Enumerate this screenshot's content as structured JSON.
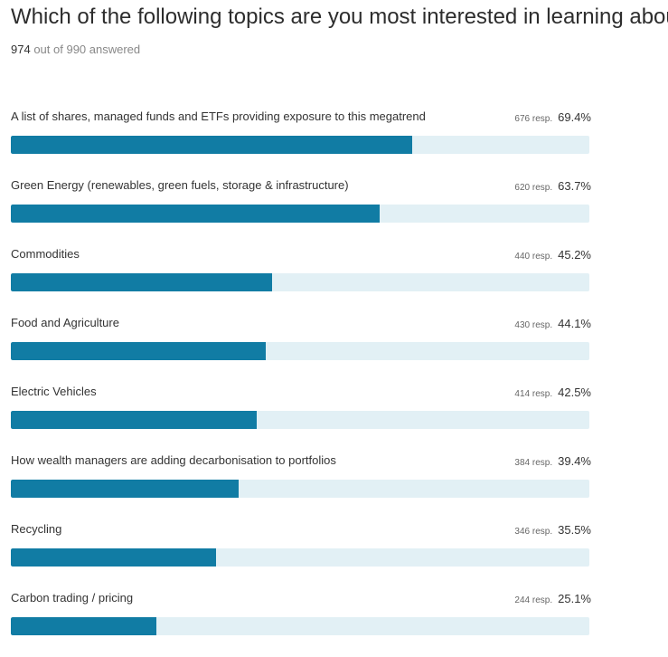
{
  "question": "Which of the following topics are you most interested in learning about?",
  "answered": {
    "count": "974",
    "text": "out of 990 answered"
  },
  "resp_suffix": "resp.",
  "colors": {
    "bar_fill": "#117ca4",
    "bar_track": "#e2f0f5"
  },
  "chart_data": {
    "type": "bar",
    "orientation": "horizontal",
    "categories": [
      "A list of shares, managed funds and ETFs providing exposure to this megatrend",
      "Green Energy (renewables, green fuels, storage & infrastructure)",
      "Commodities",
      "Food and Agriculture",
      "Electric Vehicles",
      "How wealth managers are adding decarbonisation to portfolios",
      "Recycling",
      "Carbon trading / pricing"
    ],
    "responses": [
      676,
      620,
      440,
      430,
      414,
      384,
      346,
      244
    ],
    "values": [
      69.4,
      63.7,
      45.2,
      44.1,
      42.5,
      39.4,
      35.5,
      25.1
    ],
    "value_labels": [
      "69.4%",
      "63.7%",
      "45.2%",
      "44.1%",
      "42.5%",
      "39.4%",
      "35.5%",
      "25.1%"
    ],
    "xlim": [
      0,
      100
    ]
  }
}
